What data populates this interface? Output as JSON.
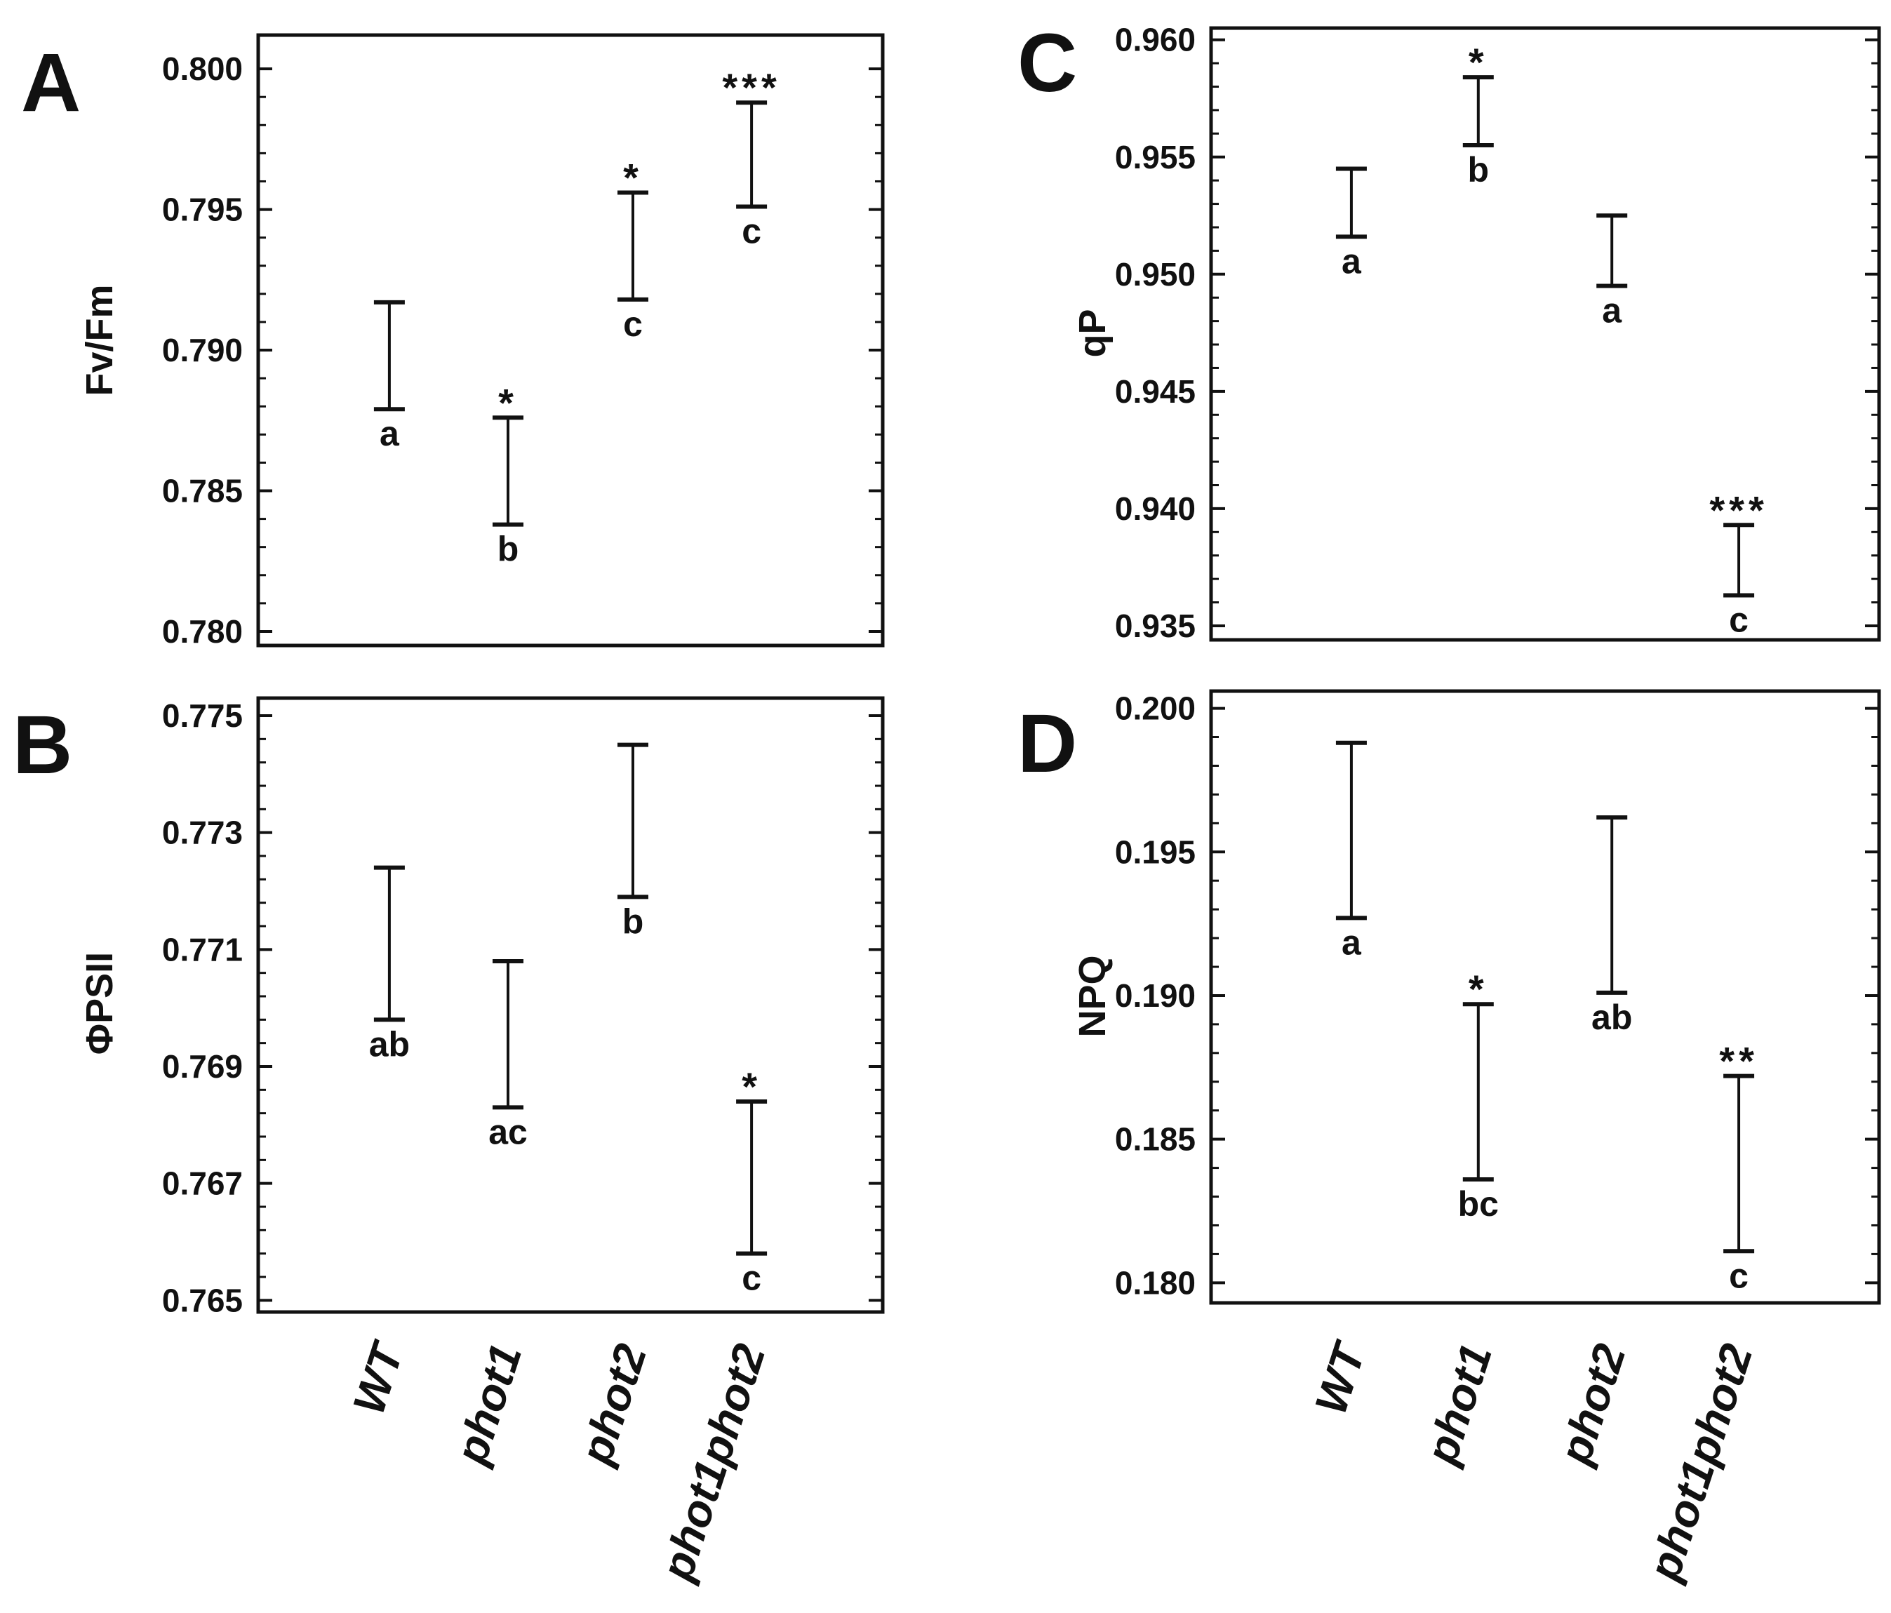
{
  "chart_data": [
    {
      "panel": "A",
      "type": "errorbar",
      "ylabel": "Fv/Fm",
      "categories": [
        "WT",
        "phot1",
        "phot2",
        "phot1phot2"
      ],
      "ylim": [
        0.7795,
        0.8012
      ],
      "yticks": [
        0.78,
        0.785,
        0.79,
        0.795,
        0.8
      ],
      "ytick_labels": [
        "0.780",
        "0.785",
        "0.790",
        "0.795",
        "0.800"
      ],
      "lower": [
        0.7879,
        0.7838,
        0.7918,
        0.7951
      ],
      "upper": [
        0.7917,
        0.7876,
        0.7956,
        0.7988
      ],
      "letters": [
        "a",
        "b",
        "c",
        "c"
      ],
      "stars": [
        "",
        "*",
        "*",
        "***"
      ]
    },
    {
      "panel": "B",
      "type": "errorbar",
      "ylabel": "ΦPSII",
      "categories": [
        "WT",
        "phot1",
        "phot2",
        "phot1phot2"
      ],
      "ylim": [
        0.7648,
        0.7753
      ],
      "yticks": [
        0.765,
        0.767,
        0.769,
        0.771,
        0.773,
        0.775
      ],
      "ytick_labels": [
        "0.765",
        "0.767",
        "0.769",
        "0.771",
        "0.773",
        "0.775"
      ],
      "lower": [
        0.7698,
        0.7683,
        0.7719,
        0.7658
      ],
      "upper": [
        0.7724,
        0.7708,
        0.7745,
        0.7684
      ],
      "letters": [
        "ab",
        "ac",
        "b",
        "c"
      ],
      "stars": [
        "",
        "",
        "",
        "*"
      ]
    },
    {
      "panel": "C",
      "type": "errorbar",
      "ylabel": "qP",
      "categories": [
        "WT",
        "phot1",
        "phot2",
        "phot1phot2"
      ],
      "ylim": [
        0.9344,
        0.9605
      ],
      "yticks": [
        0.935,
        0.94,
        0.945,
        0.95,
        0.955,
        0.96
      ],
      "ytick_labels": [
        "0.935",
        "0.940",
        "0.945",
        "0.950",
        "0.955",
        "0.960"
      ],
      "lower": [
        0.9516,
        0.9555,
        0.9495,
        0.9363
      ],
      "upper": [
        0.9545,
        0.9584,
        0.9525,
        0.9393
      ],
      "letters": [
        "a",
        "b",
        "a",
        "c"
      ],
      "stars": [
        "",
        "*",
        "",
        "***"
      ]
    },
    {
      "panel": "D",
      "type": "errorbar",
      "ylabel": "NPQ",
      "categories": [
        "WT",
        "phot1",
        "phot2",
        "phot1phot2"
      ],
      "ylim": [
        0.1793,
        0.2006
      ],
      "yticks": [
        0.18,
        0.185,
        0.19,
        0.195,
        0.2
      ],
      "ytick_labels": [
        "0.180",
        "0.185",
        "0.190",
        "0.195",
        "0.200"
      ],
      "lower": [
        0.1927,
        0.1836,
        0.1901,
        0.1811
      ],
      "upper": [
        0.1988,
        0.1897,
        0.1962,
        0.1872
      ],
      "letters": [
        "a",
        "bc",
        "ab",
        "c"
      ],
      "stars": [
        "",
        "*",
        "",
        "**"
      ]
    }
  ],
  "x_axis_labels": [
    "WT",
    "phot1",
    "phot2",
    "phot1phot2"
  ]
}
